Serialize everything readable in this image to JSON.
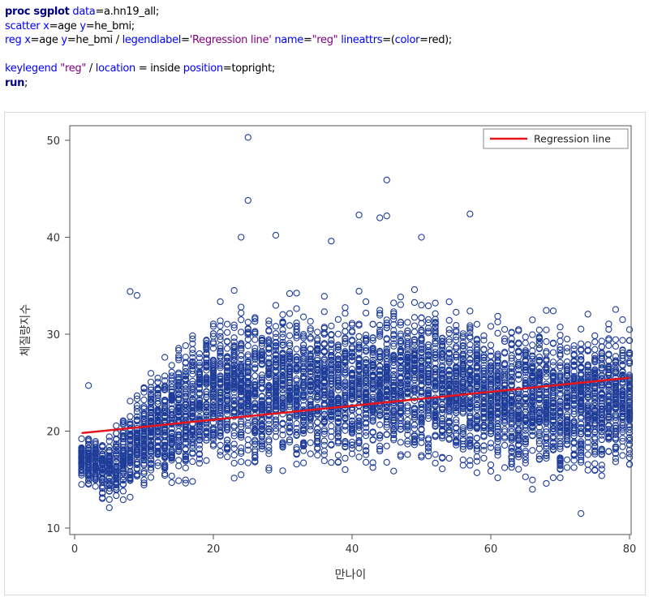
{
  "code": {
    "lines": [
      [
        {
          "t": "proc sgplot",
          "c": "kw-b"
        },
        {
          "t": " data",
          "c": "kw"
        },
        {
          "t": "=a.hn19_all;",
          "c": "plain"
        }
      ],
      [
        {
          "t": "scatter",
          "c": "kw"
        },
        {
          "t": " x",
          "c": "kw"
        },
        {
          "t": "=age ",
          "c": "plain"
        },
        {
          "t": "y",
          "c": "kw"
        },
        {
          "t": "=he_bmi;",
          "c": "plain"
        }
      ],
      [
        {
          "t": "reg",
          "c": "kw"
        },
        {
          "t": " x",
          "c": "kw"
        },
        {
          "t": "=age ",
          "c": "plain"
        },
        {
          "t": "y",
          "c": "kw"
        },
        {
          "t": "=he_bmi / ",
          "c": "plain"
        },
        {
          "t": "legendlabel",
          "c": "kw"
        },
        {
          "t": "=",
          "c": "plain"
        },
        {
          "t": "'Regression line'",
          "c": "str"
        },
        {
          "t": " ",
          "c": "plain"
        },
        {
          "t": "name",
          "c": "kw"
        },
        {
          "t": "=",
          "c": "plain"
        },
        {
          "t": "\"reg\"",
          "c": "str"
        },
        {
          "t": " ",
          "c": "plain"
        },
        {
          "t": "lineattrs",
          "c": "kw"
        },
        {
          "t": "=(",
          "c": "plain"
        },
        {
          "t": "color",
          "c": "kw"
        },
        {
          "t": "=red);",
          "c": "plain"
        }
      ],
      [],
      [
        {
          "t": "keylegend",
          "c": "kw"
        },
        {
          "t": " ",
          "c": "plain"
        },
        {
          "t": "\"reg\"",
          "c": "str"
        },
        {
          "t": " / ",
          "c": "plain"
        },
        {
          "t": "location",
          "c": "kw"
        },
        {
          "t": " = inside ",
          "c": "plain"
        },
        {
          "t": "position",
          "c": "kw"
        },
        {
          "t": "=topright;",
          "c": "plain"
        }
      ],
      [
        {
          "t": "run",
          "c": "kw-b"
        },
        {
          "t": ";",
          "c": "plain"
        }
      ]
    ]
  },
  "chart_data": {
    "type": "scatter",
    "xlabel": "만나이",
    "ylabel": "체질량지수",
    "xlim": [
      0,
      80
    ],
    "ylim": [
      10,
      51
    ],
    "xticks": [
      0,
      20,
      40,
      60,
      80
    ],
    "yticks": [
      10,
      20,
      30,
      40,
      50
    ],
    "grid": false,
    "legend": {
      "position": "top-right",
      "entries": [
        "Regression line"
      ]
    },
    "series": [
      {
        "kind": "scatter",
        "marker": "open-circle",
        "color": "#1f3d99",
        "description": "he_bmi vs age, dense cloud; approx. per-age distribution summarized",
        "age_range": [
          1,
          80
        ],
        "summary_by_age": [
          {
            "x": 1,
            "y_low": 14.5,
            "y_high": 20.5
          },
          {
            "x": 5,
            "y_low": 12.5,
            "y_high": 21
          },
          {
            "x": 10,
            "y_low": 13,
            "y_high": 28
          },
          {
            "x": 20,
            "y_low": 15,
            "y_high": 37
          },
          {
            "x": 30,
            "y_low": 15.5,
            "y_high": 37
          },
          {
            "x": 40,
            "y_low": 15.5,
            "y_high": 37
          },
          {
            "x": 50,
            "y_low": 16,
            "y_high": 38
          },
          {
            "x": 60,
            "y_low": 15,
            "y_high": 36
          },
          {
            "x": 70,
            "y_low": 14,
            "y_high": 35
          },
          {
            "x": 80,
            "y_low": 15.5,
            "y_high": 35
          }
        ],
        "outliers": [
          {
            "x": 2,
            "y": 24.7
          },
          {
            "x": 8,
            "y": 34.4
          },
          {
            "x": 9,
            "y": 34.0
          },
          {
            "x": 24,
            "y": 40.0
          },
          {
            "x": 25,
            "y": 50.3
          },
          {
            "x": 25,
            "y": 43.8
          },
          {
            "x": 29,
            "y": 40.2
          },
          {
            "x": 37,
            "y": 39.6
          },
          {
            "x": 41,
            "y": 42.3
          },
          {
            "x": 44,
            "y": 42.0
          },
          {
            "x": 45,
            "y": 45.9
          },
          {
            "x": 45,
            "y": 42.2
          },
          {
            "x": 50,
            "y": 40.0
          },
          {
            "x": 57,
            "y": 42.4
          },
          {
            "x": 66,
            "y": 14.0
          },
          {
            "x": 73,
            "y": 11.5
          },
          {
            "x": 5,
            "y": 12.1
          }
        ]
      },
      {
        "kind": "line",
        "name": "Regression line",
        "color": "#e8141c",
        "x": [
          1,
          80
        ],
        "y": [
          19.8,
          25.5
        ]
      }
    ]
  }
}
